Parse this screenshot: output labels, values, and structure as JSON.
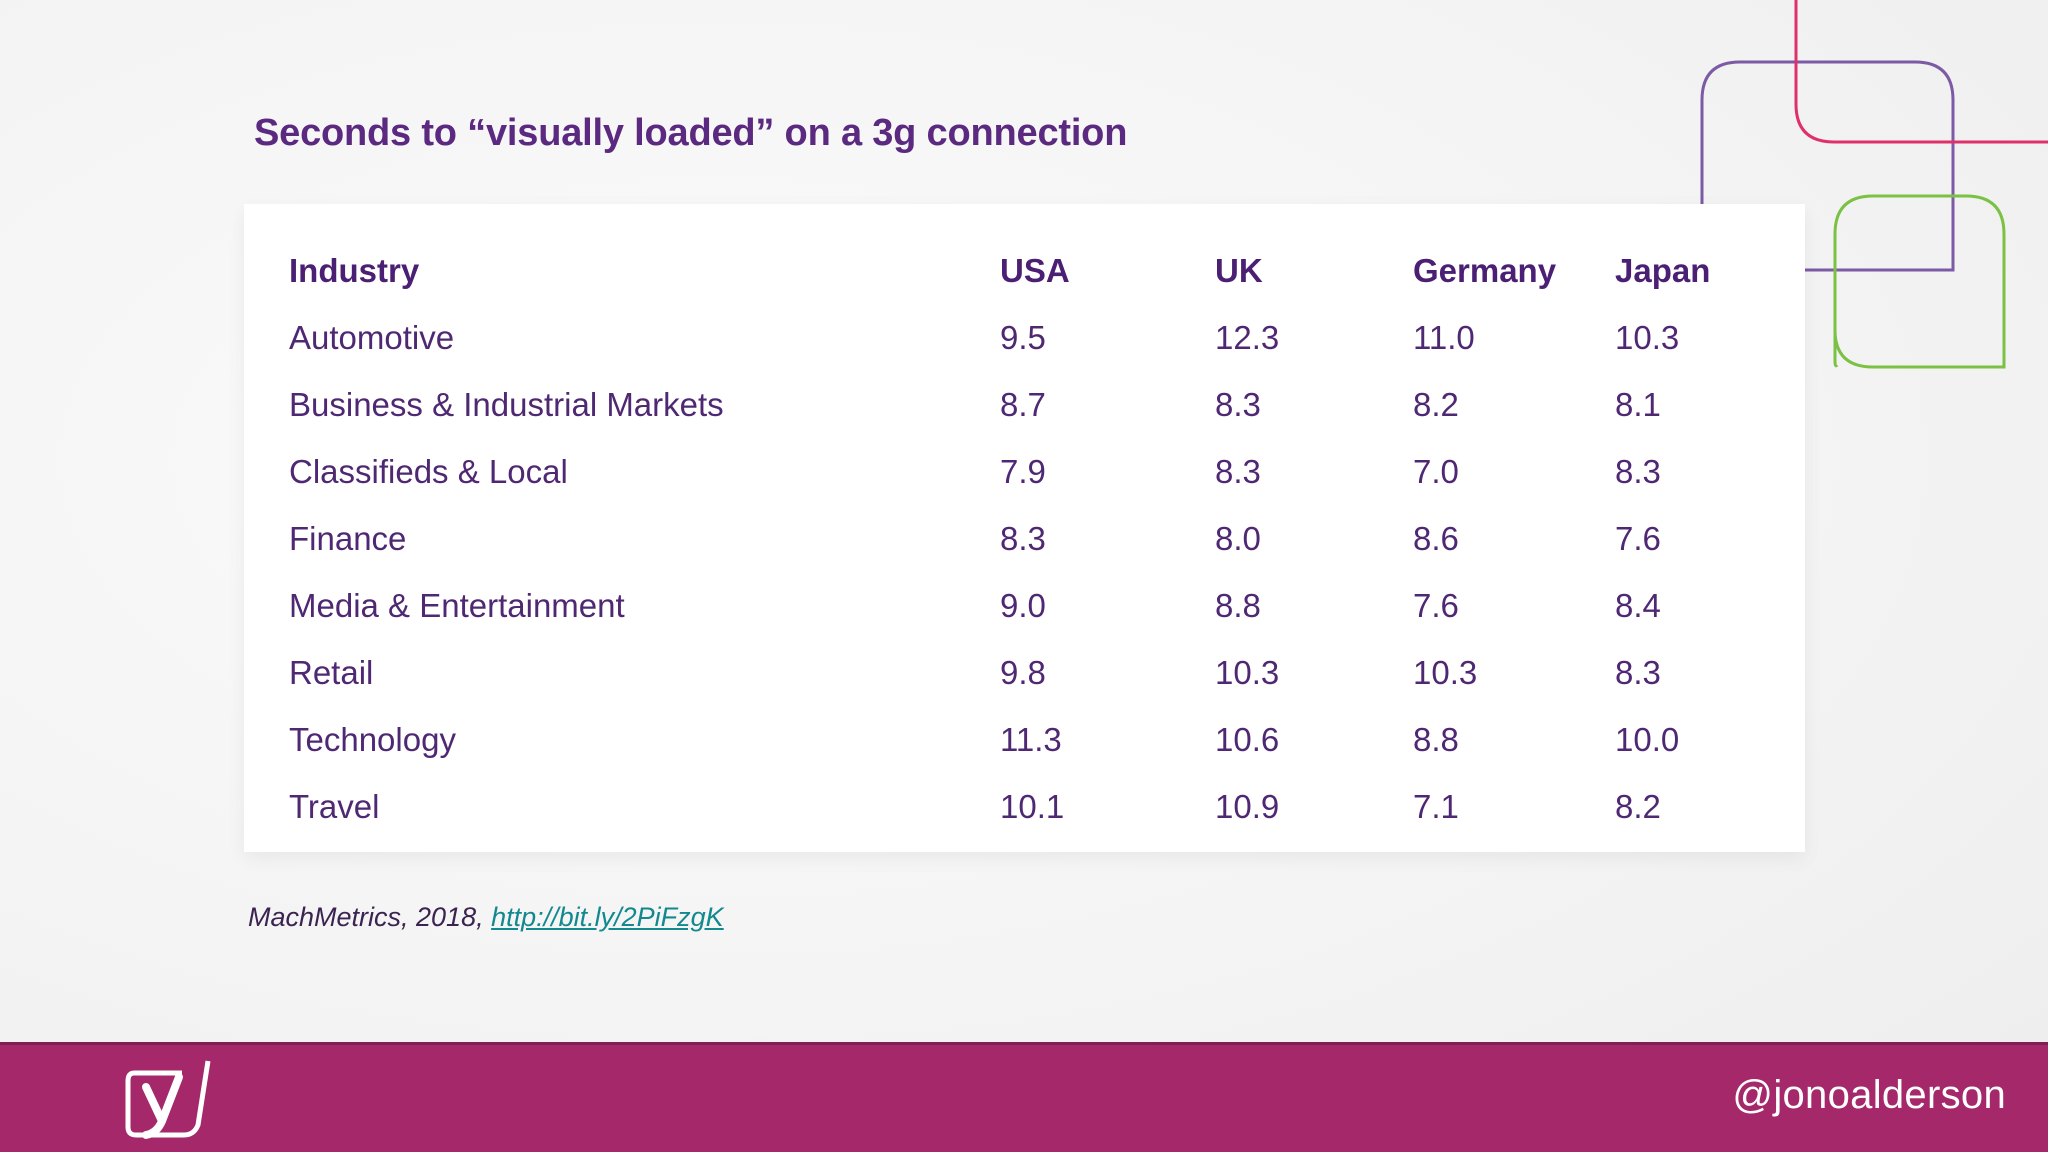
{
  "title": "Seconds to “visually loaded” on a 3g connection",
  "table": {
    "headers": [
      "Industry",
      "USA",
      "UK",
      "Germany",
      "Japan"
    ],
    "rows": [
      [
        "Automotive",
        "9.5",
        "12.3",
        "11.0",
        "10.3"
      ],
      [
        "Business & Industrial Markets",
        "8.7",
        "8.3",
        "8.2",
        "8.1"
      ],
      [
        "Classifieds & Local",
        "7.9",
        "8.3",
        "7.0",
        "8.3"
      ],
      [
        "Finance",
        "8.3",
        "8.0",
        "8.6",
        "7.6"
      ],
      [
        "Media & Entertainment",
        "9.0",
        "8.8",
        "7.6",
        "8.4"
      ],
      [
        "Retail",
        "9.8",
        "10.3",
        "10.3",
        "8.3"
      ],
      [
        "Technology",
        "11.3",
        "10.6",
        "8.8",
        "10.0"
      ],
      [
        "Travel",
        "10.1",
        "10.9",
        "7.1",
        "8.2"
      ]
    ]
  },
  "citation": {
    "prefix": "MachMetrics, 2018, ",
    "link_text": "http://bit.ly/2PiFzgK"
  },
  "footer": {
    "handle": "@jonoalderson",
    "logo_icon": "yoast-logo-icon",
    "background_color": "#a4286a"
  },
  "colors": {
    "title": "#5b2a80",
    "text": "#4f2873",
    "link": "#13898f",
    "deco_purple": "#7b5aa6",
    "deco_pink": "#e0306a",
    "deco_green": "#7bc143"
  }
}
